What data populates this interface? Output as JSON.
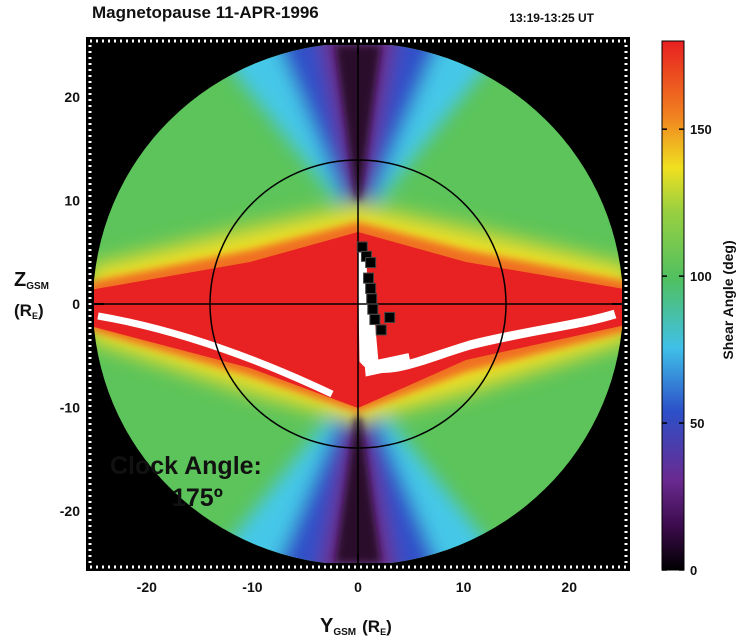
{
  "chart_data": {
    "type": "scatter",
    "title": "Magnetopause 11-APR-1996",
    "time": "13:19-13:25 UT",
    "x_label": [
      "Y",
      "GSM",
      "(R",
      "E",
      ")"
    ],
    "y_label": [
      "Z",
      "GSM",
      "(R",
      "E",
      ")"
    ],
    "xlim": [
      -25,
      25
    ],
    "ylim": [
      -25,
      25
    ],
    "xticks": [
      -20,
      -10,
      0,
      10,
      20
    ],
    "yticks": [
      -20,
      -10,
      0,
      10,
      20
    ],
    "x": [
      0.4,
      0.8,
      1.2,
      1.0,
      1.2,
      1.3,
      1.4,
      1.6,
      2.2,
      3.0
    ],
    "values": [
      5.5,
      4.6,
      4.0,
      2.5,
      1.5,
      0.5,
      -0.5,
      -1.5,
      -2.5,
      -1.3
    ],
    "color": "#000000",
    "annotation": [
      "Clock Angle:",
      "175º"
    ],
    "colorbar": {
      "label": "Shear Angle  (deg)",
      "lim": [
        0,
        180
      ],
      "ticks": [
        0,
        50,
        100,
        150
      ]
    }
  }
}
